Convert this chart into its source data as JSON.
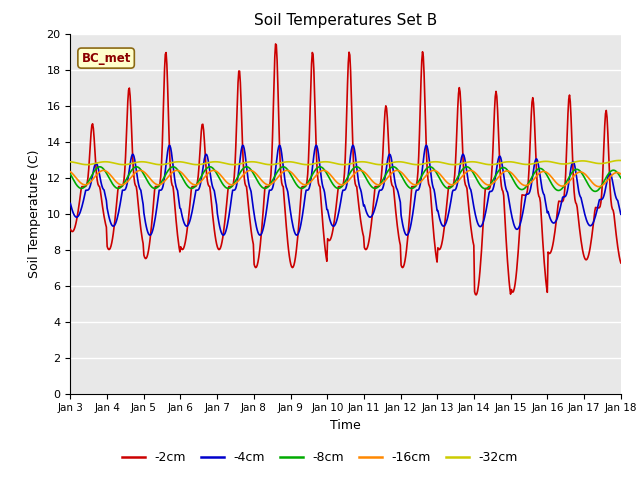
{
  "title": "Soil Temperatures Set B",
  "xlabel": "Time",
  "ylabel": "Soil Temperature (C)",
  "annotation": "BC_met",
  "xlim": [
    0,
    15
  ],
  "ylim": [
    0,
    20
  ],
  "yticks": [
    0,
    2,
    4,
    6,
    8,
    10,
    12,
    14,
    16,
    18,
    20
  ],
  "xtick_labels": [
    "Jan 3",
    "Jan 4",
    "Jan 5",
    "Jan 6",
    "Jan 7",
    "Jan 8",
    "Jan 9",
    "Jan 10",
    "Jan 11",
    "Jan 12",
    "Jan 13",
    "Jan 14",
    "Jan 15",
    "Jan 16",
    "Jan 17",
    "Jan 18"
  ],
  "series": {
    "-2cm": {
      "color": "#cc0000",
      "linewidth": 1.2
    },
    "-4cm": {
      "color": "#0000cc",
      "linewidth": 1.2
    },
    "-8cm": {
      "color": "#00aa00",
      "linewidth": 1.2
    },
    "-16cm": {
      "color": "#ff8800",
      "linewidth": 1.2
    },
    "-32cm": {
      "color": "#cccc00",
      "linewidth": 1.2
    }
  },
  "background_color": "#e8e8e8",
  "grid_color": "#ffffff",
  "legend_colors": [
    "#cc0000",
    "#0000cc",
    "#00aa00",
    "#ff8800",
    "#cccc00"
  ],
  "legend_labels": [
    "-2cm",
    "-4cm",
    "-8cm",
    "-16cm",
    "-32cm"
  ]
}
